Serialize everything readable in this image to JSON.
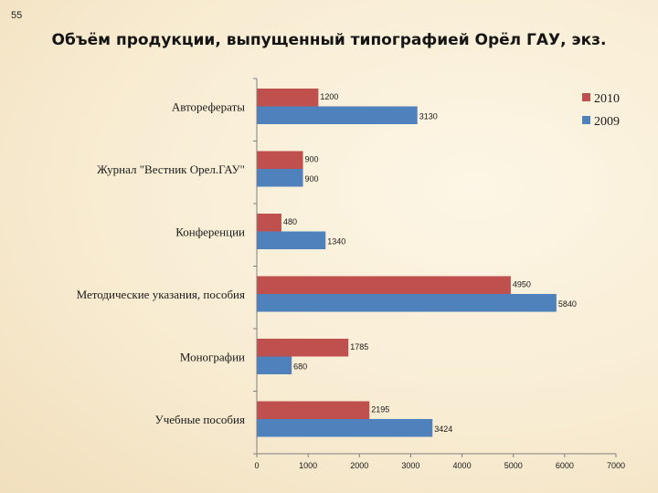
{
  "slide_number": "55",
  "colors": {
    "2010": "#c0504d",
    "2009": "#4f81bd",
    "axis": "#808080"
  },
  "chart_data": {
    "type": "bar",
    "orientation": "horizontal",
    "title": "Объём продукции, выпущенный типографией Орёл ГАУ, экз.",
    "categories": [
      "Авторефераты",
      "Журнал \"Вестник Орел.ГАУ\"",
      "Конференции",
      "Методические указания, пособия",
      "Монографии",
      "Учебные пособия"
    ],
    "series": [
      {
        "name": "2010",
        "values": [
          1200,
          900,
          480,
          4950,
          1785,
          2195
        ]
      },
      {
        "name": "2009",
        "values": [
          3130,
          900,
          1340,
          5840,
          680,
          3424
        ]
      }
    ],
    "xlim": [
      0,
      7000
    ],
    "x_ticks": [
      0,
      1000,
      2000,
      3000,
      4000,
      5000,
      6000,
      7000
    ],
    "grid": false,
    "legend": {
      "position": "top-right",
      "entries": [
        "2010",
        "2009"
      ]
    }
  }
}
